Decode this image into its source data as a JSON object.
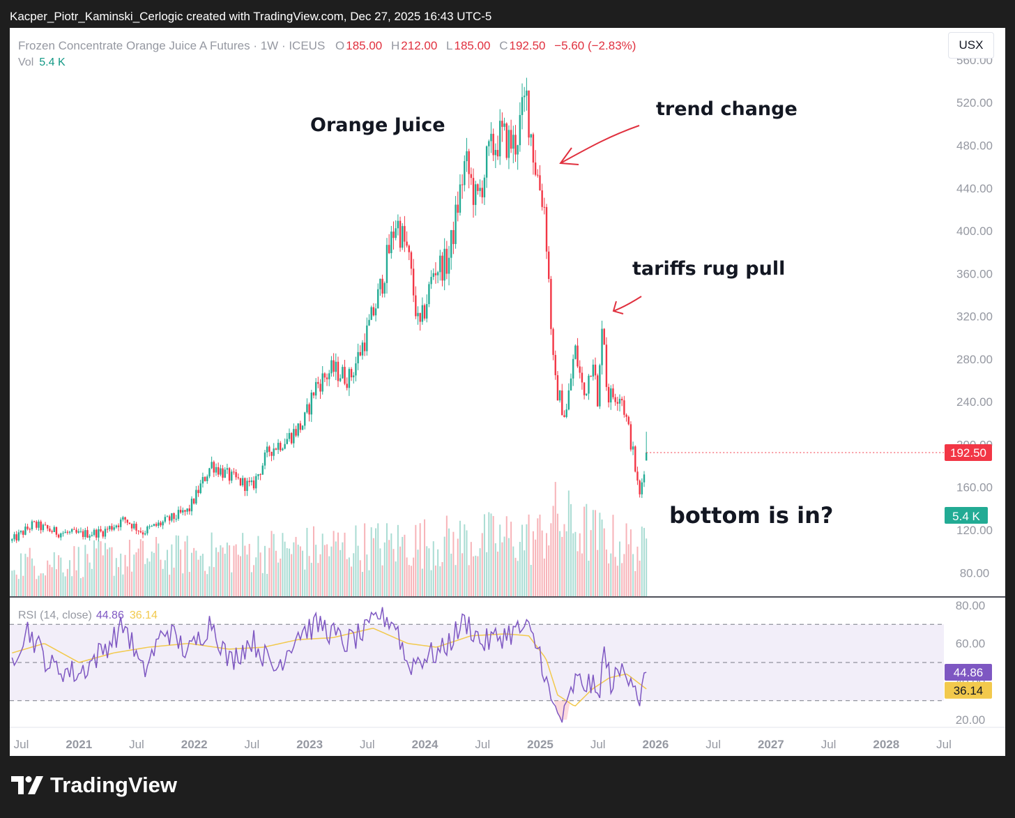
{
  "attribution": "Kacper_Piotr_Kaminski_Cerlogic created with TradingView.com, Dec 27, 2025 16:43 UTC-5",
  "legend": {
    "symbol_text": "Frozen Concentrate Orange Juice A Futures · 1W · ICEUS",
    "o_label": "O",
    "o_value": "185.00",
    "h_label": "H",
    "h_value": "212.00",
    "l_label": "L",
    "l_value": "185.00",
    "c_label": "C",
    "c_value": "192.50",
    "change": "−5.60 (−2.83%)",
    "vol_label": "Vol",
    "vol_value": "5.4 K"
  },
  "currency_button": "USX",
  "annotations": {
    "title": "Orange Juice",
    "trend_change": "trend change",
    "tariffs": "tariffs rug pull",
    "bottom": "bottom is in?"
  },
  "badges": {
    "price": "192.50",
    "volume": "5.4 K",
    "rsi": "44.86",
    "rsi_ma": "36.14"
  },
  "rsi_legend": {
    "label": "RSI (14, close)",
    "rsi_value": "44.86",
    "ma_value": "36.14"
  },
  "footer": {
    "brand": "TradingView"
  },
  "colors": {
    "up": "#22ab94",
    "down": "#f23645",
    "rsi": "#7e57c2",
    "rsi_ma": "#f2c94c",
    "vol_up": "#a9dcd3",
    "vol_down": "#f7b3b8",
    "annotation_arrow": "#e0303e"
  },
  "chart_data": [
    {
      "type": "candlestick",
      "title": "Frozen Concentrate Orange Juice A Futures · 1W · ICEUS",
      "price_ticks": [
        80,
        120,
        160,
        200,
        240,
        280,
        320,
        360,
        400,
        440,
        480,
        520,
        560
      ],
      "price_tick_labels": [
        "80.00",
        "120.00",
        "160.00",
        "200.00",
        "240.00",
        "280.00",
        "320.00",
        "360.00",
        "400.00",
        "440.00",
        "480.00",
        "520.00",
        "560.00"
      ],
      "time_labels": [
        "Jul",
        "2021",
        "Jul",
        "2022",
        "Jul",
        "2023",
        "Jul",
        "2024",
        "Jul",
        "2025",
        "Jul",
        "2026",
        "Jul",
        "2027",
        "Jul",
        "2028",
        "Jul"
      ],
      "time_label_bold": [
        false,
        true,
        false,
        true,
        false,
        true,
        false,
        true,
        false,
        true,
        false,
        true,
        false,
        true,
        false,
        true,
        false
      ],
      "time_label_dates": [
        2020.5,
        2021.0,
        2021.5,
        2022.0,
        2022.5,
        2023.0,
        2023.5,
        2024.0,
        2024.5,
        2025.0,
        2025.5,
        2026.0,
        2026.5,
        2027.0,
        2027.5,
        2028.0,
        2028.5
      ],
      "x_range": [
        2020.4,
        2028.5
      ],
      "y_range": [
        58,
        590
      ],
      "price_path": [
        [
          2020.42,
          110
        ],
        [
          2020.6,
          125
        ],
        [
          2020.8,
          118
        ],
        [
          2021.0,
          116
        ],
        [
          2021.2,
          118
        ],
        [
          2021.4,
          130
        ],
        [
          2021.55,
          118
        ],
        [
          2021.75,
          128
        ],
        [
          2021.95,
          138
        ],
        [
          2022.15,
          182
        ],
        [
          2022.3,
          170
        ],
        [
          2022.5,
          160
        ],
        [
          2022.65,
          195
        ],
        [
          2022.8,
          205
        ],
        [
          2022.95,
          220
        ],
        [
          2023.05,
          255
        ],
        [
          2023.2,
          270
        ],
        [
          2023.35,
          262
        ],
        [
          2023.5,
          305
        ],
        [
          2023.6,
          340
        ],
        [
          2023.75,
          410
        ],
        [
          2023.85,
          380
        ],
        [
          2023.95,
          305
        ],
        [
          2024.08,
          365
        ],
        [
          2024.2,
          370
        ],
        [
          2024.35,
          465
        ],
        [
          2024.45,
          425
        ],
        [
          2024.55,
          470
        ],
        [
          2024.65,
          488
        ],
        [
          2024.78,
          480
        ],
        [
          2024.88,
          525
        ],
        [
          2024.95,
          465
        ],
        [
          2025.04,
          420
        ],
        [
          2025.12,
          260
        ],
        [
          2025.22,
          225
        ],
        [
          2025.3,
          290
        ],
        [
          2025.38,
          245
        ],
        [
          2025.46,
          285
        ],
        [
          2025.5,
          228
        ],
        [
          2025.54,
          330
        ],
        [
          2025.58,
          245
        ],
        [
          2025.7,
          248
        ],
        [
          2025.8,
          195
        ],
        [
          2025.86,
          150
        ],
        [
          2025.92,
          192.5
        ]
      ],
      "volume_path": [
        [
          2020.42,
          0.25
        ],
        [
          2025.0,
          0.45
        ],
        [
          2025.1,
          0.6
        ],
        [
          2025.5,
          0.45
        ],
        [
          2025.92,
          0.35
        ]
      ],
      "last_price": 192.5
    },
    {
      "type": "line",
      "title": "RSI (14, close)",
      "y_ticks": [
        20,
        40,
        60,
        80
      ],
      "y_tick_labels": [
        "20.00",
        "40.00",
        "60.00",
        "80.00"
      ],
      "y_range": [
        16,
        84
      ],
      "bands": {
        "upper": 70,
        "middle": 50,
        "lower": 30
      },
      "series": [
        {
          "name": "RSI (14, close)",
          "path": [
            [
              2020.42,
              52
            ],
            [
              2020.55,
              68
            ],
            [
              2020.75,
              48
            ],
            [
              2021.0,
              44
            ],
            [
              2021.2,
              56
            ],
            [
              2021.4,
              70
            ],
            [
              2021.55,
              44
            ],
            [
              2021.75,
              68
            ],
            [
              2021.95,
              55
            ],
            [
              2022.15,
              72
            ],
            [
              2022.3,
              50
            ],
            [
              2022.5,
              62
            ],
            [
              2022.7,
              46
            ],
            [
              2022.9,
              66
            ],
            [
              2023.1,
              70
            ],
            [
              2023.3,
              60
            ],
            [
              2023.5,
              66
            ],
            [
              2023.6,
              76
            ],
            [
              2023.75,
              70
            ],
            [
              2023.85,
              48
            ],
            [
              2023.95,
              52
            ],
            [
              2024.15,
              56
            ],
            [
              2024.35,
              72
            ],
            [
              2024.5,
              60
            ],
            [
              2024.7,
              65
            ],
            [
              2024.88,
              68
            ],
            [
              2025.0,
              55
            ],
            [
              2025.1,
              27
            ],
            [
              2025.2,
              20
            ],
            [
              2025.3,
              40
            ],
            [
              2025.45,
              38
            ],
            [
              2025.5,
              30
            ],
            [
              2025.55,
              55
            ],
            [
              2025.62,
              38
            ],
            [
              2025.7,
              46
            ],
            [
              2025.8,
              44
            ],
            [
              2025.86,
              30
            ],
            [
              2025.92,
              44.86
            ]
          ]
        },
        {
          "name": "MA",
          "path": [
            [
              2020.42,
              55
            ],
            [
              2020.7,
              60
            ],
            [
              2021.0,
              50
            ],
            [
              2021.3,
              55
            ],
            [
              2021.6,
              58
            ],
            [
              2021.95,
              60
            ],
            [
              2022.3,
              57
            ],
            [
              2022.6,
              58
            ],
            [
              2022.9,
              62
            ],
            [
              2023.2,
              63
            ],
            [
              2023.55,
              68
            ],
            [
              2023.85,
              60
            ],
            [
              2024.1,
              58
            ],
            [
              2024.4,
              64
            ],
            [
              2024.7,
              65
            ],
            [
              2024.9,
              64
            ],
            [
              2025.05,
              52
            ],
            [
              2025.15,
              33
            ],
            [
              2025.3,
              27
            ],
            [
              2025.45,
              36
            ],
            [
              2025.6,
              42
            ],
            [
              2025.75,
              44
            ],
            [
              2025.92,
              36.14
            ]
          ]
        }
      ],
      "last_values": {
        "rsi": 44.86,
        "ma": 36.14
      }
    }
  ]
}
